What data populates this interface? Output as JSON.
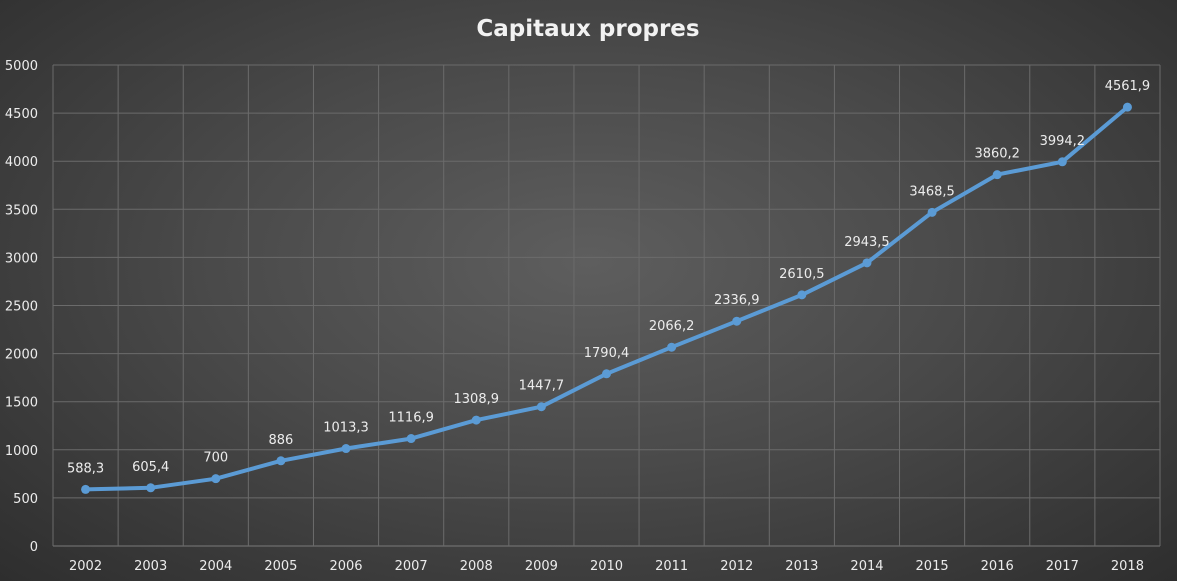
{
  "chart_data": {
    "type": "line",
    "title": "Capitaux propres",
    "xlabel": "",
    "ylabel": "",
    "categories": [
      "2002",
      "2003",
      "2004",
      "2005",
      "2006",
      "2007",
      "2008",
      "2009",
      "2010",
      "2011",
      "2012",
      "2013",
      "2014",
      "2015",
      "2016",
      "2017",
      "2018"
    ],
    "series": [
      {
        "values": [
          588.3,
          605.4,
          700,
          886,
          1013.3,
          1116.9,
          1308.9,
          1447.7,
          1790.4,
          2066.2,
          2336.9,
          2610.5,
          2943.5,
          3468.5,
          3860.2,
          3994.2,
          4561.9
        ],
        "labels": [
          "588,3",
          "605,4",
          "700",
          "886",
          "1013,3",
          "1116,9",
          "1308,9",
          "1447,7",
          "1790,4",
          "2066,2",
          "2336,9",
          "2610,5",
          "2943,5",
          "3468,5",
          "3860,2",
          "3994,2",
          "4561,9"
        ],
        "color": "#5b9bd5"
      }
    ],
    "ylim": [
      0,
      5000
    ],
    "yticks": [
      "0",
      "500",
      "1000",
      "1500",
      "2000",
      "2500",
      "3000",
      "3500",
      "4000",
      "4500",
      "5000"
    ],
    "grid": true,
    "legend": "none"
  }
}
